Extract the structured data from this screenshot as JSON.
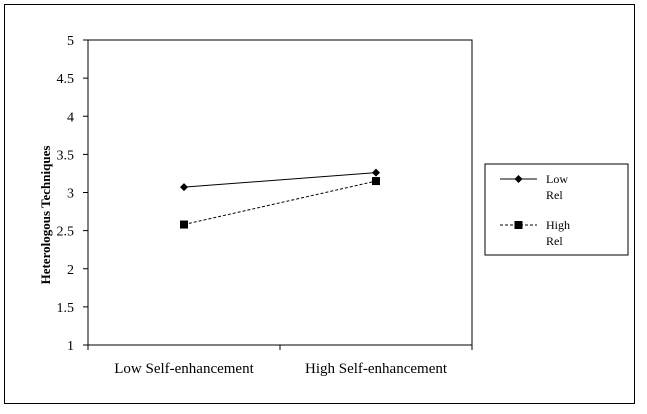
{
  "chart_data": {
    "type": "line",
    "title": "",
    "xlabel": "",
    "ylabel": "Heterologous Techniques",
    "categories": [
      "Low Self-enhancement",
      "High Self-enhancement"
    ],
    "ylim": [
      1,
      5
    ],
    "yticks": [
      "1",
      "1.5",
      "2",
      "2.5",
      "3",
      "3.5",
      "4",
      "4.5",
      "5"
    ],
    "grid": false,
    "legend_position": "right",
    "series": [
      {
        "name": "Low Rel",
        "legend_lines": [
          "Low",
          "Rel"
        ],
        "values": [
          3.07,
          3.26
        ],
        "marker": "diamond",
        "dash": "solid",
        "color": "#000000"
      },
      {
        "name": "High Rel",
        "legend_lines": [
          "High",
          "Rel"
        ],
        "values": [
          2.58,
          3.15
        ],
        "marker": "square",
        "dash": "dashed",
        "color": "#000000"
      }
    ]
  }
}
